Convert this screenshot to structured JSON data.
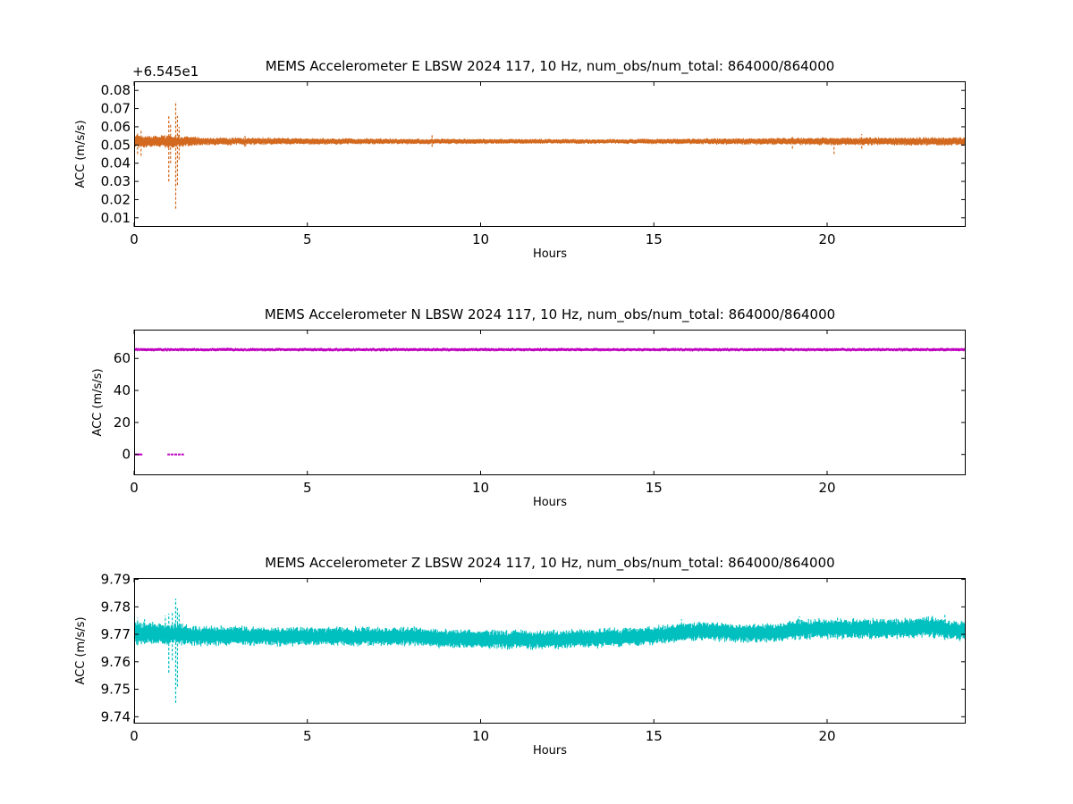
{
  "chart_data": [
    {
      "type": "scatter",
      "title": "MEMS Accelerometer E LBSW 2024 117, 10 Hz, num_obs/num_total: 864000/864000",
      "xlabel": "Hours",
      "ylabel": "ACC (m/s/s)",
      "offset_label": "+6.545e1",
      "xlim": [
        0,
        24
      ],
      "ylim": [
        0.005,
        0.085
      ],
      "xticks": [
        0,
        5,
        10,
        15,
        20
      ],
      "xtick_labels": [
        "0",
        "5",
        "10",
        "15",
        "20"
      ],
      "yticks": [
        0.01,
        0.02,
        0.03,
        0.04,
        0.05,
        0.06,
        0.07,
        0.08
      ],
      "ytick_labels": [
        "0.01",
        "0.02",
        "0.03",
        "0.04",
        "0.05",
        "0.06",
        "0.07",
        "0.08"
      ],
      "color": "#d2691e",
      "grid": false,
      "series": [
        {
          "band": [
            [
              0,
              0.052,
              0.003
            ],
            [
              0.5,
              0.052,
              0.0025
            ],
            [
              1,
              0.052,
              0.003
            ],
            [
              1.5,
              0.052,
              0.0025
            ],
            [
              2,
              0.052,
              0.0018
            ],
            [
              4,
              0.052,
              0.0016
            ],
            [
              6,
              0.052,
              0.0014
            ],
            [
              8,
              0.052,
              0.0013
            ],
            [
              10,
              0.052,
              0.0012
            ],
            [
              12,
              0.052,
              0.0011
            ],
            [
              14,
              0.052,
              0.0011
            ],
            [
              16,
              0.052,
              0.0013
            ],
            [
              18,
              0.052,
              0.0015
            ],
            [
              20,
              0.052,
              0.0018
            ],
            [
              22,
              0.052,
              0.0018
            ],
            [
              24,
              0.052,
              0.002
            ]
          ],
          "spikes": [
            [
              0.1,
              0.045,
              0.057
            ],
            [
              0.2,
              0.044,
              0.058
            ],
            [
              1.0,
              0.03,
              0.066
            ],
            [
              1.05,
              0.04,
              0.062
            ],
            [
              1.2,
              0.015,
              0.074
            ],
            [
              1.25,
              0.028,
              0.066
            ],
            [
              1.3,
              0.042,
              0.06
            ],
            [
              3.2,
              0.049,
              0.055
            ],
            [
              8.6,
              0.049,
              0.056
            ],
            [
              19.0,
              0.048,
              0.055
            ],
            [
              20.2,
              0.045,
              0.054
            ],
            [
              21.0,
              0.048,
              0.056
            ]
          ]
        }
      ]
    },
    {
      "type": "scatter",
      "title": "MEMS Accelerometer N LBSW 2024 117, 10 Hz, num_obs/num_total: 864000/864000",
      "xlabel": "Hours",
      "ylabel": "ACC (m/s/s)",
      "xlim": [
        0,
        24
      ],
      "ylim": [
        -13,
        78
      ],
      "xticks": [
        0,
        5,
        10,
        15,
        20
      ],
      "xtick_labels": [
        "0",
        "5",
        "10",
        "15",
        "20"
      ],
      "yticks": [
        0,
        20,
        40,
        60
      ],
      "ytick_labels": [
        "0",
        "20",
        "40",
        "60"
      ],
      "color": "#bf00bf",
      "grid": false,
      "series": [
        {
          "band": [
            [
              0,
              65.5,
              0.9
            ],
            [
              24,
              65.5,
              0.9
            ]
          ],
          "points": [
            [
              0.05,
              0
            ],
            [
              0.1,
              0
            ],
            [
              0.15,
              0
            ],
            [
              0.2,
              0
            ],
            [
              1.0,
              0
            ],
            [
              1.1,
              0
            ],
            [
              1.2,
              0
            ],
            [
              1.3,
              0
            ],
            [
              1.4,
              0
            ]
          ]
        }
      ]
    },
    {
      "type": "scatter",
      "title": "MEMS Accelerometer Z LBSW 2024 117, 10 Hz, num_obs/num_total: 864000/864000",
      "xlabel": "Hours",
      "ylabel": "ACC (m/s/s)",
      "xlim": [
        0,
        24
      ],
      "ylim": [
        9.7375,
        9.7905
      ],
      "xticks": [
        0,
        5,
        10,
        15,
        20
      ],
      "xtick_labels": [
        "0",
        "5",
        "10",
        "15",
        "20"
      ],
      "yticks": [
        9.74,
        9.75,
        9.76,
        9.77,
        9.78,
        9.79
      ],
      "ytick_labels": [
        "9.74",
        "9.75",
        "9.76",
        "9.77",
        "9.78",
        "9.79"
      ],
      "color": "#00bfbf",
      "grid": false,
      "series": [
        {
          "band": [
            [
              0,
              9.7705,
              0.0035
            ],
            [
              1,
              9.7702,
              0.0032
            ],
            [
              2,
              9.7695,
              0.003
            ],
            [
              4,
              9.7692,
              0.0028
            ],
            [
              6,
              9.7692,
              0.0028
            ],
            [
              8,
              9.7692,
              0.0028
            ],
            [
              9,
              9.7685,
              0.0028
            ],
            [
              10,
              9.7682,
              0.0028
            ],
            [
              12,
              9.768,
              0.0028
            ],
            [
              14,
              9.7688,
              0.0028
            ],
            [
              15,
              9.7695,
              0.0028
            ],
            [
              15.6,
              9.7705,
              0.0028
            ],
            [
              16.5,
              9.7712,
              0.0028
            ],
            [
              17.5,
              9.7705,
              0.0028
            ],
            [
              18.5,
              9.7705,
              0.0028
            ],
            [
              19,
              9.7718,
              0.003
            ],
            [
              20,
              9.772,
              0.003
            ],
            [
              21,
              9.772,
              0.003
            ],
            [
              22,
              9.772,
              0.003
            ],
            [
              23,
              9.7728,
              0.0032
            ],
            [
              23.6,
              9.7715,
              0.003
            ],
            [
              24,
              9.7712,
              0.003
            ]
          ],
          "spikes": [
            [
              0.1,
              9.766,
              9.776
            ],
            [
              0.3,
              9.7665,
              9.7755
            ],
            [
              0.9,
              9.7668,
              9.7768
            ],
            [
              1.0,
              9.756,
              9.7775
            ],
            [
              1.1,
              9.7605,
              9.778
            ],
            [
              1.2,
              9.745,
              9.783
            ],
            [
              1.25,
              9.751,
              9.7795
            ],
            [
              1.3,
              9.7665,
              9.778
            ],
            [
              8.2,
              9.766,
              9.772
            ],
            [
              15.8,
              9.7685,
              9.7755
            ],
            [
              19.2,
              9.768,
              9.7765
            ],
            [
              20.3,
              9.7685,
              9.7762
            ],
            [
              23.4,
              9.768,
              9.7775
            ]
          ]
        }
      ]
    }
  ]
}
